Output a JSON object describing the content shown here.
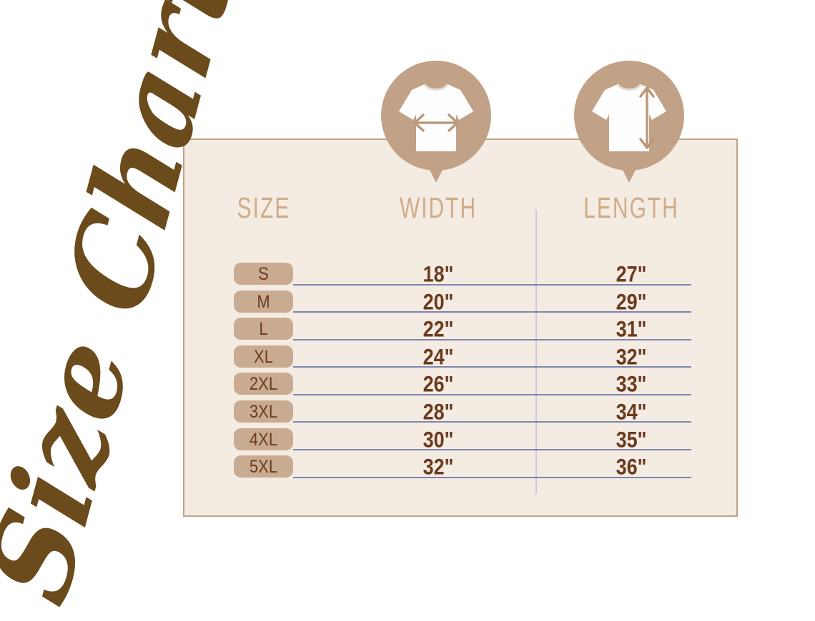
{
  "title": {
    "text": "Size Chart"
  },
  "icons": {
    "width_badge": "t-shirt-width-arrow",
    "length_badge": "t-shirt-length-arrow"
  },
  "table": {
    "headers": {
      "size": "SIZE",
      "width": "WIDTH",
      "length": "LENGTH"
    },
    "rows": [
      {
        "size": "S",
        "width": "18\"",
        "length": "27\""
      },
      {
        "size": "M",
        "width": "20\"",
        "length": "29\""
      },
      {
        "size": "L",
        "width": "22\"",
        "length": "31\""
      },
      {
        "size": "XL",
        "width": "24\"",
        "length": "32\""
      },
      {
        "size": "2XL",
        "width": "26\"",
        "length": "33\""
      },
      {
        "size": "3XL",
        "width": "28\"",
        "length": "34\""
      },
      {
        "size": "4XL",
        "width": "30\"",
        "length": "35\""
      },
      {
        "size": "5XL",
        "width": "32\"",
        "length": "36\""
      }
    ]
  },
  "colors": {
    "card_background": "#f4ebe2",
    "card_border": "#c1a285",
    "badge_circle": "#c2a287",
    "size_pill": "#c9ab92",
    "header_text": "#d0ab87",
    "value_text": "#6b3b1e",
    "row_line": "#7d85ae",
    "column_divider": "#ccc9d3",
    "script_title": "#6b4a1c",
    "shirt": "#fefefe"
  }
}
